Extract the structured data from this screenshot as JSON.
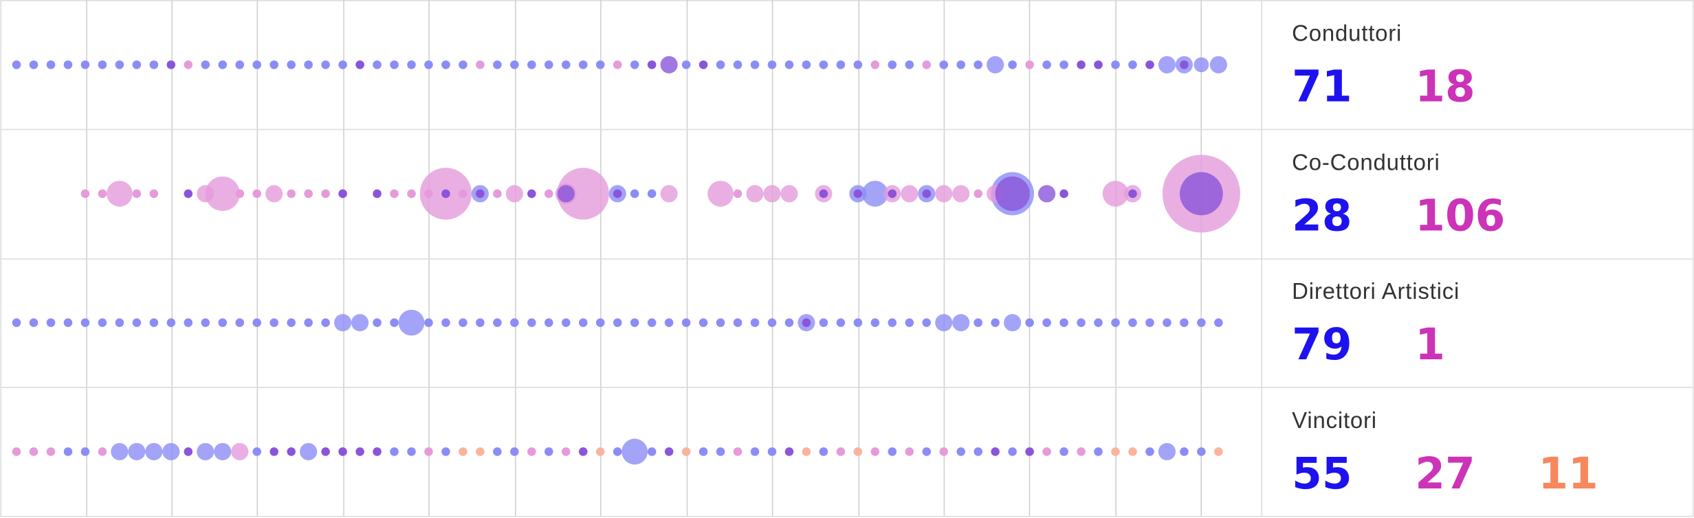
{
  "xlim": [
    0,
    70
  ],
  "count_colors": [
    "#1d12ee",
    "#cc33b8",
    "#f7875c"
  ],
  "rows": [
    {
      "title": "Conduttori",
      "counts": [
        71,
        18
      ],
      "series": [
        {
          "color": "#8c8cf6",
          "x": [
            0,
            1,
            2,
            3,
            4,
            5,
            6,
            7,
            8,
            11,
            12,
            13,
            14,
            15,
            16,
            17,
            18,
            19,
            21,
            22,
            23,
            24,
            25,
            26,
            28,
            29,
            30,
            31,
            32,
            33,
            34,
            36,
            39,
            41,
            42,
            43,
            44,
            45,
            46,
            47,
            48,
            49,
            51,
            52,
            54,
            55,
            56,
            57,
            58,
            60,
            61,
            64,
            65,
            67,
            68,
            69,
            70
          ],
          "values": [
            1,
            1,
            1,
            1,
            1,
            1,
            1,
            1,
            1,
            1,
            1,
            1,
            1,
            1,
            1,
            1,
            1,
            1,
            1,
            1,
            1,
            1,
            1,
            1,
            1,
            1,
            1,
            1,
            1,
            1,
            1,
            1,
            1,
            1,
            1,
            1,
            1,
            1,
            1,
            1,
            1,
            1,
            1,
            1,
            1,
            1,
            1,
            4,
            1,
            1,
            1,
            1,
            1,
            4,
            4,
            3,
            4
          ]
        },
        {
          "color": "#e59bdb",
          "x": [
            10,
            27,
            35,
            50,
            53,
            59
          ],
          "values": [
            1,
            1,
            1,
            1,
            1,
            1
          ]
        },
        {
          "color": "#8a55d9",
          "x": [
            9,
            20,
            37,
            38,
            40,
            62,
            63,
            66,
            68
          ],
          "values": [
            1,
            1,
            1,
            4,
            1,
            1,
            1,
            1,
            1
          ]
        }
      ]
    },
    {
      "title": "Co-Conduttori",
      "counts": [
        28,
        106
      ],
      "series": [
        {
          "color": "#8c8cf6",
          "x": [
            27,
            35,
            36,
            37,
            49,
            50,
            53,
            58
          ],
          "values": [
            4,
            4,
            1,
            1,
            4,
            9,
            4,
            25
          ]
        },
        {
          "color": "#e59bdb",
          "x": [
            4,
            5,
            6,
            7,
            8,
            11,
            12,
            13,
            14,
            15,
            16,
            17,
            18,
            22,
            23,
            24,
            25,
            26,
            28,
            29,
            31,
            32,
            33,
            38,
            41,
            42,
            43,
            44,
            45,
            47,
            51,
            52,
            54,
            55,
            56,
            57,
            64,
            65,
            69
          ],
          "values": [
            1,
            1,
            9,
            1,
            1,
            4,
            16,
            1,
            1,
            4,
            1,
            1,
            1,
            1,
            1,
            1,
            36,
            1,
            1,
            4,
            1,
            6,
            36,
            4,
            9,
            1,
            4,
            4,
            4,
            4,
            4,
            4,
            4,
            4,
            1,
            4,
            9,
            4,
            81
          ]
        },
        {
          "color": "#8a55d9",
          "x": [
            10,
            19,
            21,
            25,
            27,
            30,
            32,
            35,
            47,
            49,
            51,
            53,
            58,
            60,
            61,
            65,
            69
          ],
          "values": [
            1,
            1,
            1,
            1,
            1,
            1,
            4,
            1,
            1,
            1,
            1,
            1,
            16,
            4,
            1,
            1,
            25
          ]
        }
      ]
    },
    {
      "title": "Direttori Artistici",
      "counts": [
        79,
        1
      ],
      "series": [
        {
          "color": "#8c8cf6",
          "x": [
            0,
            1,
            2,
            3,
            4,
            5,
            6,
            7,
            8,
            9,
            10,
            11,
            12,
            13,
            14,
            15,
            16,
            17,
            18,
            19,
            20,
            21,
            22,
            23,
            24,
            25,
            26,
            27,
            28,
            29,
            30,
            31,
            32,
            33,
            34,
            35,
            36,
            37,
            38,
            39,
            40,
            41,
            42,
            43,
            44,
            45,
            46,
            47,
            48,
            49,
            50,
            51,
            52,
            53,
            54,
            55,
            56,
            57,
            58,
            59,
            60,
            61,
            62,
            63,
            64,
            65,
            66,
            67,
            68,
            69,
            70
          ],
          "values": [
            1,
            1,
            1,
            1,
            1,
            1,
            1,
            1,
            1,
            1,
            1,
            1,
            1,
            1,
            1,
            1,
            1,
            1,
            1,
            4,
            4,
            1,
            1,
            9,
            1,
            1,
            1,
            1,
            1,
            1,
            1,
            1,
            1,
            1,
            1,
            1,
            1,
            1,
            1,
            1,
            1,
            1,
            1,
            1,
            1,
            1,
            4,
            1,
            1,
            1,
            1,
            1,
            1,
            1,
            4,
            4,
            1,
            1,
            4,
            1,
            1,
            1,
            1,
            1,
            1,
            1,
            1,
            1,
            1,
            1,
            1
          ]
        },
        {
          "color": "#8a55d9",
          "x": [
            46
          ],
          "values": [
            1
          ]
        }
      ]
    },
    {
      "title": "Vincitori",
      "counts": [
        55,
        27,
        11
      ],
      "series": [
        {
          "color": "#8c8cf6",
          "x": [
            3,
            4,
            6,
            7,
            8,
            9,
            11,
            12,
            14,
            17,
            22,
            23,
            25,
            28,
            29,
            31,
            35,
            36,
            37,
            40,
            41,
            43,
            44,
            47,
            51,
            53,
            55,
            56,
            58,
            61,
            63,
            66,
            67,
            68,
            69
          ],
          "values": [
            1,
            1,
            4,
            4,
            4,
            4,
            4,
            4,
            1,
            4,
            1,
            1,
            1,
            1,
            1,
            1,
            1,
            9,
            1,
            1,
            1,
            1,
            1,
            1,
            1,
            1,
            1,
            1,
            1,
            1,
            1,
            1,
            4,
            1,
            1
          ]
        },
        {
          "color": "#e59bdb",
          "x": [
            0,
            1,
            2,
            5,
            13,
            24,
            30,
            32,
            42,
            48,
            50,
            52,
            54,
            60,
            62
          ],
          "values": [
            1,
            1,
            1,
            1,
            4,
            1,
            1,
            1,
            1,
            1,
            1,
            1,
            1,
            1,
            1
          ]
        },
        {
          "color": "#f9b49c",
          "x": [
            26,
            27,
            34,
            39,
            46,
            49,
            64,
            65,
            70
          ],
          "values": [
            1,
            1,
            1,
            1,
            1,
            1,
            1,
            1,
            1
          ]
        },
        {
          "color": "#8a55d9",
          "x": [
            10,
            15,
            16,
            18,
            19,
            20,
            21,
            33,
            38,
            45,
            57,
            59
          ],
          "values": [
            1,
            1,
            1,
            1,
            1,
            1,
            1,
            1,
            1,
            1,
            1,
            1
          ]
        }
      ]
    }
  ]
}
